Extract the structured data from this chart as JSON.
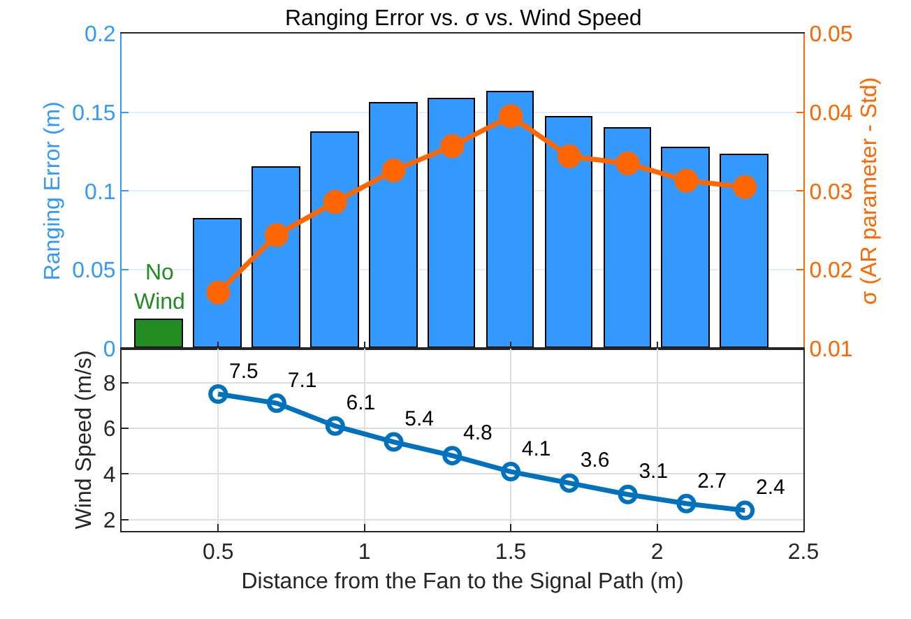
{
  "chart_data": [
    {
      "type": "bar",
      "title": "Ranging Error vs. σ vs. Wind Speed",
      "ylabel": "Ranging Error (m)",
      "y2label": "σ (AR parameter - Std)",
      "x": [
        0.3,
        0.5,
        0.7,
        0.9,
        1.1,
        1.3,
        1.5,
        1.7,
        1.9,
        2.1,
        2.3
      ],
      "xlim": [
        0.17,
        2.5
      ],
      "xticks": [
        {
          "value": 0.5,
          "label": null
        },
        {
          "value": 1,
          "label": null
        },
        {
          "value": 1.5,
          "label": null
        },
        {
          "value": 2,
          "label": null
        },
        {
          "value": 2.5,
          "label": null
        }
      ],
      "ylim": [
        0,
        0.2
      ],
      "yticks": [
        0,
        0.05,
        0.1,
        0.15,
        0.2
      ],
      "y2lim": [
        0.01,
        0.05
      ],
      "y2ticks": [
        0.01,
        0.02,
        0.03,
        0.04,
        0.05
      ],
      "tick_labels": "y",
      "grid": "y",
      "series": [
        {
          "type": "bar",
          "colors": [
            "#228b22",
            "#3399ff",
            "#3399ff",
            "#3399ff",
            "#3399ff",
            "#3399ff",
            "#3399ff",
            "#3399ff",
            "#3399ff",
            "#3399ff",
            "#3399ff"
          ],
          "values": [
            0.018,
            0.082,
            0.115,
            0.137,
            0.156,
            0.158,
            0.163,
            0.147,
            0.14,
            0.127,
            0.123
          ]
        },
        {
          "type": "line",
          "axis": "y2",
          "color": "#ff6600",
          "marker": "circle",
          "x": [
            0.5,
            0.7,
            0.9,
            1.1,
            1.3,
            1.5,
            1.7,
            1.9,
            2.1,
            2.3
          ],
          "values": [
            0.0171,
            0.0244,
            0.0286,
            0.0326,
            0.0357,
            0.0395,
            0.0344,
            0.0335,
            0.0313,
            0.0305
          ]
        }
      ],
      "annotations": [
        "No\nWind"
      ]
    },
    {
      "type": "line",
      "xlabel": "Distance from the Fan to the Signal Path (m)",
      "ylabel": "Wind Speed (m/s)",
      "x": [
        0.5,
        0.7,
        0.9,
        1.1,
        1.3,
        1.5,
        1.7,
        1.9,
        2.1,
        2.3
      ],
      "xlim": [
        0.17,
        2.5
      ],
      "xticks": [
        0.5,
        1,
        1.5,
        2,
        2.5
      ],
      "ylim": [
        1.5,
        9.5
      ],
      "yticks": [
        2,
        4,
        6,
        8
      ],
      "grid": true,
      "marker": "circle",
      "data_labels": true,
      "series": [
        {
          "color": "#0072bd",
          "values": [
            7.5,
            7.1,
            6.1,
            5.4,
            4.8,
            4.1,
            3.6,
            3.1,
            2.7,
            2.4
          ]
        }
      ]
    }
  ]
}
